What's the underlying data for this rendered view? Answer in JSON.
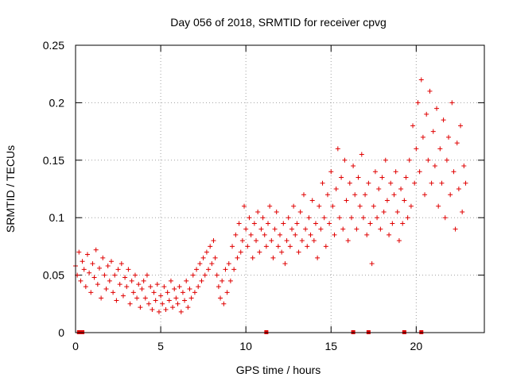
{
  "chart_data": {
    "type": "scatter",
    "title": "Day 056 of 2018, SRMTID for receiver cpvg",
    "xlabel": "GPS time / hours",
    "ylabel": "SRMTID / TECUs",
    "xlim": [
      0,
      24
    ],
    "ylim": [
      0,
      0.25
    ],
    "grid": true,
    "marker": "+",
    "colors": {
      "series": "#e00000",
      "grid": "#a0a0a0",
      "axis": "#000000"
    },
    "x_ticks": [
      {
        "value": 0,
        "label": "0"
      },
      {
        "value": 5,
        "label": "5"
      },
      {
        "value": 10,
        "label": "10"
      },
      {
        "value": 15,
        "label": "15"
      },
      {
        "value": 20,
        "label": "20"
      }
    ],
    "y_ticks": [
      {
        "value": 0,
        "label": "0"
      },
      {
        "value": 0.05,
        "label": "0.05"
      },
      {
        "value": 0.1,
        "label": "0.1"
      },
      {
        "value": 0.15,
        "label": "0.15"
      },
      {
        "value": 0.2,
        "label": "0.2"
      },
      {
        "value": 0.25,
        "label": "0.25"
      }
    ],
    "baseline_markers_x": [
      0.2,
      0.4,
      11.2,
      16.3,
      17.2,
      19.3,
      20.3
    ],
    "series": [
      {
        "name": "SRMTID",
        "points": [
          [
            0.0,
            0.058
          ],
          [
            0.1,
            0.05
          ],
          [
            0.2,
            0.07
          ],
          [
            0.3,
            0.045
          ],
          [
            0.4,
            0.062
          ],
          [
            0.5,
            0.055
          ],
          [
            0.6,
            0.04
          ],
          [
            0.7,
            0.068
          ],
          [
            0.8,
            0.052
          ],
          [
            0.9,
            0.035
          ],
          [
            1.0,
            0.06
          ],
          [
            1.1,
            0.048
          ],
          [
            1.2,
            0.072
          ],
          [
            1.3,
            0.042
          ],
          [
            1.4,
            0.056
          ],
          [
            1.5,
            0.03
          ],
          [
            1.6,
            0.065
          ],
          [
            1.7,
            0.05
          ],
          [
            1.8,
            0.038
          ],
          [
            1.9,
            0.058
          ],
          [
            2.0,
            0.045
          ],
          [
            2.1,
            0.062
          ],
          [
            2.2,
            0.035
          ],
          [
            2.3,
            0.05
          ],
          [
            2.4,
            0.028
          ],
          [
            2.5,
            0.055
          ],
          [
            2.6,
            0.042
          ],
          [
            2.7,
            0.06
          ],
          [
            2.8,
            0.032
          ],
          [
            2.9,
            0.048
          ],
          [
            3.0,
            0.04
          ],
          [
            3.1,
            0.055
          ],
          [
            3.2,
            0.025
          ],
          [
            3.3,
            0.045
          ],
          [
            3.4,
            0.035
          ],
          [
            3.5,
            0.05
          ],
          [
            3.6,
            0.03
          ],
          [
            3.7,
            0.042
          ],
          [
            3.8,
            0.022
          ],
          [
            3.9,
            0.038
          ],
          [
            4.0,
            0.045
          ],
          [
            4.1,
            0.03
          ],
          [
            4.2,
            0.05
          ],
          [
            4.3,
            0.025
          ],
          [
            4.4,
            0.04
          ],
          [
            4.5,
            0.02
          ],
          [
            4.6,
            0.035
          ],
          [
            4.7,
            0.028
          ],
          [
            4.8,
            0.042
          ],
          [
            4.9,
            0.018
          ],
          [
            5.0,
            0.032
          ],
          [
            5.1,
            0.025
          ],
          [
            5.2,
            0.04
          ],
          [
            5.3,
            0.02
          ],
          [
            5.4,
            0.035
          ],
          [
            5.5,
            0.028
          ],
          [
            5.6,
            0.045
          ],
          [
            5.7,
            0.022
          ],
          [
            5.8,
            0.038
          ],
          [
            5.9,
            0.03
          ],
          [
            6.0,
            0.025
          ],
          [
            6.1,
            0.04
          ],
          [
            6.2,
            0.018
          ],
          [
            6.3,
            0.035
          ],
          [
            6.4,
            0.028
          ],
          [
            6.5,
            0.045
          ],
          [
            6.6,
            0.022
          ],
          [
            6.7,
            0.038
          ],
          [
            6.8,
            0.03
          ],
          [
            6.9,
            0.05
          ],
          [
            7.0,
            0.035
          ],
          [
            7.1,
            0.055
          ],
          [
            7.2,
            0.04
          ],
          [
            7.3,
            0.06
          ],
          [
            7.4,
            0.045
          ],
          [
            7.5,
            0.065
          ],
          [
            7.6,
            0.05
          ],
          [
            7.7,
            0.07
          ],
          [
            7.8,
            0.055
          ],
          [
            7.9,
            0.075
          ],
          [
            8.0,
            0.06
          ],
          [
            8.1,
            0.08
          ],
          [
            8.2,
            0.065
          ],
          [
            8.3,
            0.05
          ],
          [
            8.4,
            0.04
          ],
          [
            8.5,
            0.03
          ],
          [
            8.6,
            0.045
          ],
          [
            8.7,
            0.025
          ],
          [
            8.8,
            0.055
          ],
          [
            8.9,
            0.035
          ],
          [
            9.0,
            0.06
          ],
          [
            9.1,
            0.045
          ],
          [
            9.2,
            0.075
          ],
          [
            9.3,
            0.055
          ],
          [
            9.4,
            0.085
          ],
          [
            9.5,
            0.065
          ],
          [
            9.6,
            0.095
          ],
          [
            9.7,
            0.07
          ],
          [
            9.8,
            0.08
          ],
          [
            9.9,
            0.11
          ],
          [
            10.0,
            0.09
          ],
          [
            10.1,
            0.075
          ],
          [
            10.2,
            0.1
          ],
          [
            10.3,
            0.085
          ],
          [
            10.4,
            0.065
          ],
          [
            10.5,
            0.095
          ],
          [
            10.6,
            0.08
          ],
          [
            10.7,
            0.105
          ],
          [
            10.8,
            0.07
          ],
          [
            10.9,
            0.09
          ],
          [
            11.0,
            0.1
          ],
          [
            11.1,
            0.085
          ],
          [
            11.2,
            0.075
          ],
          [
            11.3,
            0.095
          ],
          [
            11.4,
            0.11
          ],
          [
            11.5,
            0.08
          ],
          [
            11.6,
            0.065
          ],
          [
            11.7,
            0.09
          ],
          [
            11.8,
            0.105
          ],
          [
            11.9,
            0.075
          ],
          [
            12.0,
            0.085
          ],
          [
            12.1,
            0.07
          ],
          [
            12.2,
            0.095
          ],
          [
            12.3,
            0.06
          ],
          [
            12.4,
            0.08
          ],
          [
            12.5,
            0.1
          ],
          [
            12.6,
            0.075
          ],
          [
            12.7,
            0.09
          ],
          [
            12.8,
            0.11
          ],
          [
            12.9,
            0.085
          ],
          [
            13.0,
            0.095
          ],
          [
            13.1,
            0.07
          ],
          [
            13.2,
            0.105
          ],
          [
            13.3,
            0.08
          ],
          [
            13.4,
            0.12
          ],
          [
            13.5,
            0.09
          ],
          [
            13.6,
            0.075
          ],
          [
            13.7,
            0.1
          ],
          [
            13.8,
            0.085
          ],
          [
            13.9,
            0.115
          ],
          [
            14.0,
            0.08
          ],
          [
            14.1,
            0.095
          ],
          [
            14.2,
            0.065
          ],
          [
            14.3,
            0.11
          ],
          [
            14.4,
            0.09
          ],
          [
            14.5,
            0.13
          ],
          [
            14.6,
            0.1
          ],
          [
            14.7,
            0.075
          ],
          [
            14.8,
            0.12
          ],
          [
            14.9,
            0.095
          ],
          [
            15.0,
            0.14
          ],
          [
            15.1,
            0.11
          ],
          [
            15.2,
            0.085
          ],
          [
            15.3,
            0.125
          ],
          [
            15.4,
            0.16
          ],
          [
            15.5,
            0.1
          ],
          [
            15.6,
            0.135
          ],
          [
            15.7,
            0.09
          ],
          [
            15.8,
            0.15
          ],
          [
            15.9,
            0.115
          ],
          [
            16.0,
            0.08
          ],
          [
            16.1,
            0.13
          ],
          [
            16.2,
            0.1
          ],
          [
            16.3,
            0.145
          ],
          [
            16.4,
            0.12
          ],
          [
            16.5,
            0.09
          ],
          [
            16.6,
            0.135
          ],
          [
            16.7,
            0.11
          ],
          [
            16.8,
            0.155
          ],
          [
            16.9,
            0.1
          ],
          [
            17.0,
            0.12
          ],
          [
            17.1,
            0.085
          ],
          [
            17.2,
            0.13
          ],
          [
            17.3,
            0.095
          ],
          [
            17.4,
            0.06
          ],
          [
            17.5,
            0.11
          ],
          [
            17.6,
            0.14
          ],
          [
            17.7,
            0.1
          ],
          [
            17.8,
            0.125
          ],
          [
            17.9,
            0.09
          ],
          [
            18.0,
            0.135
          ],
          [
            18.1,
            0.105
          ],
          [
            18.2,
            0.15
          ],
          [
            18.3,
            0.115
          ],
          [
            18.4,
            0.085
          ],
          [
            18.5,
            0.13
          ],
          [
            18.6,
            0.095
          ],
          [
            18.7,
            0.12
          ],
          [
            18.8,
            0.14
          ],
          [
            18.9,
            0.105
          ],
          [
            19.0,
            0.08
          ],
          [
            19.1,
            0.125
          ],
          [
            19.2,
            0.095
          ],
          [
            19.3,
            0.115
          ],
          [
            19.4,
            0.135
          ],
          [
            19.5,
            0.1
          ],
          [
            19.6,
            0.15
          ],
          [
            19.7,
            0.11
          ],
          [
            19.8,
            0.18
          ],
          [
            19.9,
            0.13
          ],
          [
            20.0,
            0.16
          ],
          [
            20.1,
            0.2
          ],
          [
            20.2,
            0.14
          ],
          [
            20.3,
            0.22
          ],
          [
            20.4,
            0.17
          ],
          [
            20.5,
            0.12
          ],
          [
            20.6,
            0.19
          ],
          [
            20.7,
            0.15
          ],
          [
            20.8,
            0.21
          ],
          [
            20.9,
            0.13
          ],
          [
            21.0,
            0.175
          ],
          [
            21.1,
            0.145
          ],
          [
            21.2,
            0.195
          ],
          [
            21.3,
            0.11
          ],
          [
            21.4,
            0.16
          ],
          [
            21.5,
            0.13
          ],
          [
            21.6,
            0.185
          ],
          [
            21.7,
            0.1
          ],
          [
            21.8,
            0.15
          ],
          [
            21.9,
            0.17
          ],
          [
            22.0,
            0.12
          ],
          [
            22.1,
            0.2
          ],
          [
            22.2,
            0.14
          ],
          [
            22.3,
            0.09
          ],
          [
            22.4,
            0.165
          ],
          [
            22.5,
            0.125
          ],
          [
            22.6,
            0.18
          ],
          [
            22.7,
            0.105
          ],
          [
            22.8,
            0.145
          ],
          [
            22.9,
            0.13
          ]
        ]
      }
    ]
  }
}
